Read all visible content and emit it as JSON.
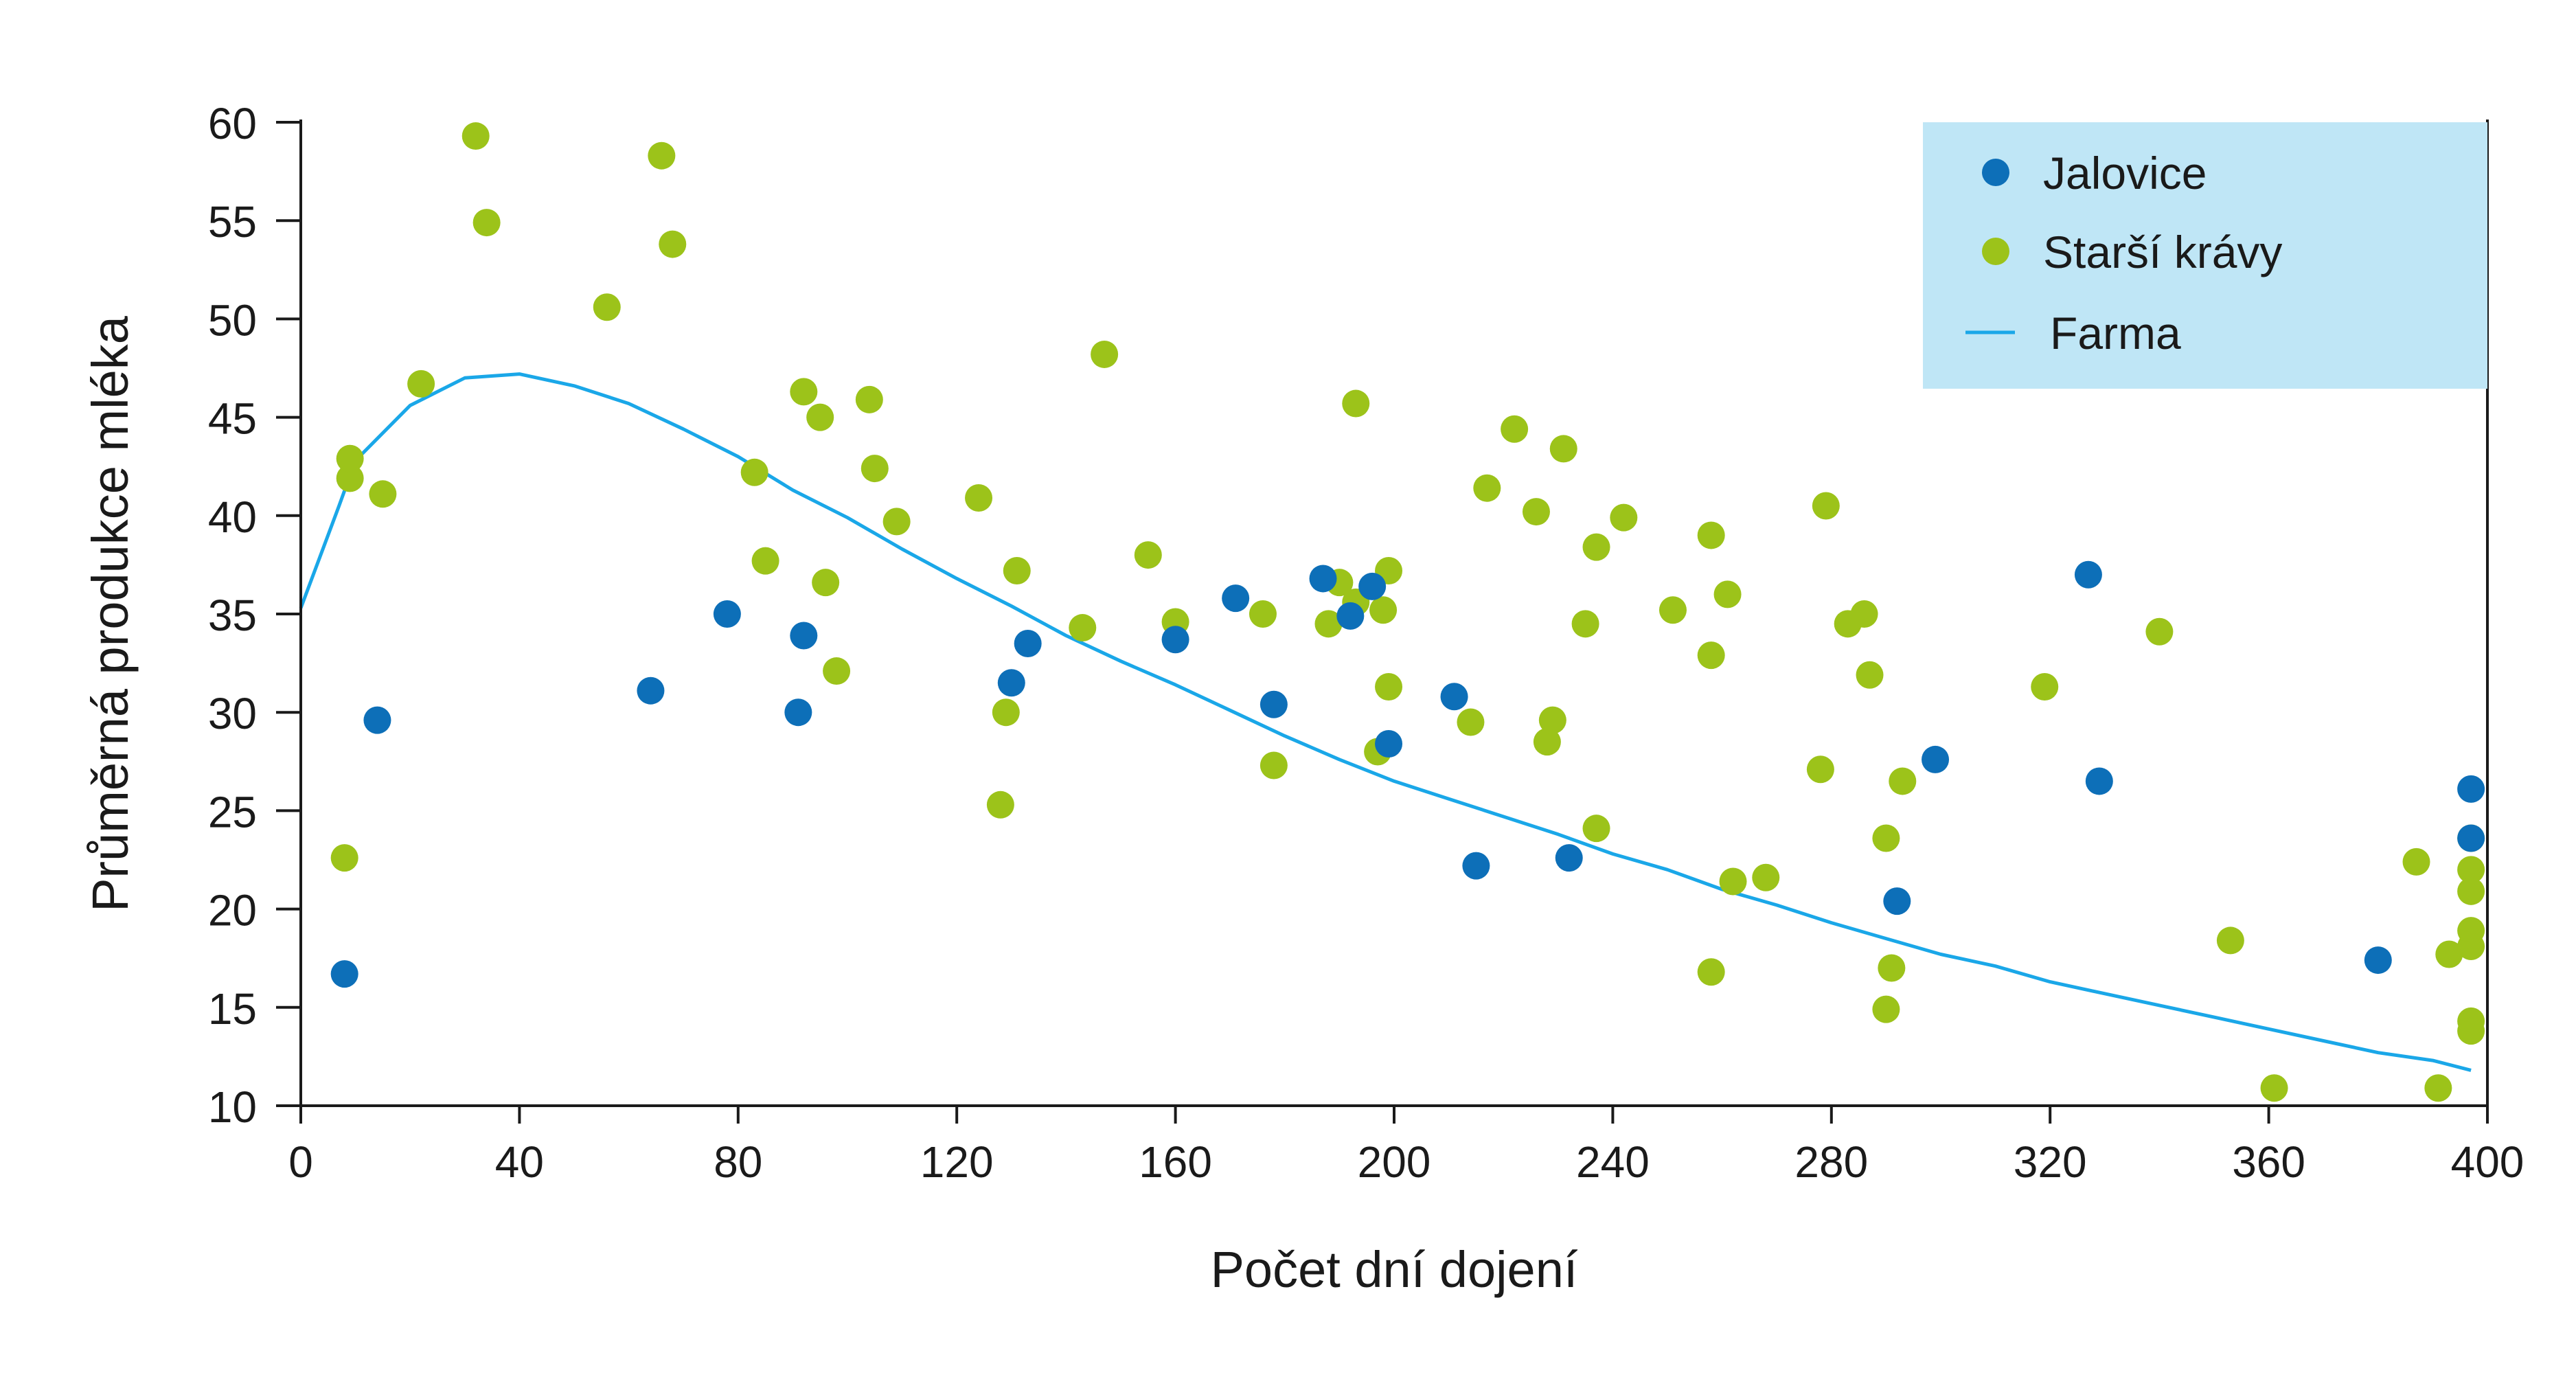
{
  "chart_data": {
    "type": "scatter",
    "xlabel": "Počet dní dojení",
    "ylabel": "Průměrná produkce mléka",
    "xlim": [
      0,
      400
    ],
    "ylim": [
      10,
      60
    ],
    "x_ticks": [
      "0",
      "40",
      "80",
      "120",
      "160",
      "200",
      "240",
      "280",
      "320",
      "360",
      "400"
    ],
    "y_ticks": [
      "10",
      "15",
      "20",
      "25",
      "30",
      "35",
      "40",
      "45",
      "50",
      "55",
      "60"
    ],
    "grid": false,
    "legend_position": "top-right",
    "colors": {
      "heifers": "#0d6fb8",
      "older_cows": "#9cc31a",
      "farm": "#1aa7e8",
      "legend_bg": "#bfe6f6",
      "axis": "#1a1a1a"
    },
    "legend": {
      "heifers": "Jalovice",
      "older_cows": "Starší krávy",
      "farm": "Farma"
    },
    "series": [
      {
        "name": "Jalovice",
        "kind": "scatter",
        "points": [
          [
            8,
            16.7
          ],
          [
            14,
            29.6
          ],
          [
            64,
            31.1
          ],
          [
            78,
            35.0
          ],
          [
            91,
            30.0
          ],
          [
            92,
            33.9
          ],
          [
            130,
            31.5
          ],
          [
            133,
            33.5
          ],
          [
            160,
            33.7
          ],
          [
            171,
            35.8
          ],
          [
            178,
            30.4
          ],
          [
            187,
            36.8
          ],
          [
            192,
            34.9
          ],
          [
            196,
            36.4
          ],
          [
            199,
            28.4
          ],
          [
            211,
            30.8
          ],
          [
            215,
            22.2
          ],
          [
            232,
            22.6
          ],
          [
            292,
            20.4
          ],
          [
            299,
            27.6
          ],
          [
            327,
            37.0
          ],
          [
            329,
            26.5
          ],
          [
            380,
            17.4
          ],
          [
            397,
            26.1
          ],
          [
            397,
            23.6
          ]
        ]
      },
      {
        "name": "Starší krávy",
        "kind": "scatter",
        "points": [
          [
            8,
            22.6
          ],
          [
            9,
            41.9
          ],
          [
            9,
            42.9
          ],
          [
            15,
            41.1
          ],
          [
            22,
            46.7
          ],
          [
            32,
            59.3
          ],
          [
            34,
            54.9
          ],
          [
            56,
            50.6
          ],
          [
            66,
            58.3
          ],
          [
            68,
            53.8
          ],
          [
            83,
            42.2
          ],
          [
            85,
            37.7
          ],
          [
            92,
            46.3
          ],
          [
            95,
            45.0
          ],
          [
            96,
            36.6
          ],
          [
            98,
            32.1
          ],
          [
            104,
            45.9
          ],
          [
            105,
            42.4
          ],
          [
            109,
            39.7
          ],
          [
            124,
            40.9
          ],
          [
            128,
            25.3
          ],
          [
            129,
            30.0
          ],
          [
            131,
            37.2
          ],
          [
            143,
            34.3
          ],
          [
            147,
            48.2
          ],
          [
            155,
            38.0
          ],
          [
            160,
            34.6
          ],
          [
            176,
            35.0
          ],
          [
            178,
            27.3
          ],
          [
            188,
            34.5
          ],
          [
            190,
            36.6
          ],
          [
            193,
            35.6
          ],
          [
            193,
            45.7
          ],
          [
            197,
            28.0
          ],
          [
            198,
            35.2
          ],
          [
            199,
            37.2
          ],
          [
            199,
            31.3
          ],
          [
            214,
            29.5
          ],
          [
            217,
            41.4
          ],
          [
            222,
            44.4
          ],
          [
            226,
            40.2
          ],
          [
            228,
            28.5
          ],
          [
            229,
            29.6
          ],
          [
            231,
            43.4
          ],
          [
            235,
            34.5
          ],
          [
            237,
            38.4
          ],
          [
            237,
            24.1
          ],
          [
            242,
            39.9
          ],
          [
            251,
            35.2
          ],
          [
            258,
            16.8
          ],
          [
            258,
            32.9
          ],
          [
            258,
            39.0
          ],
          [
            261,
            36.0
          ],
          [
            262,
            21.4
          ],
          [
            268,
            21.6
          ],
          [
            278,
            27.1
          ],
          [
            279,
            40.5
          ],
          [
            283,
            34.5
          ],
          [
            286,
            35.0
          ],
          [
            287,
            31.9
          ],
          [
            290,
            23.6
          ],
          [
            291,
            17.0
          ],
          [
            290,
            14.9
          ],
          [
            293,
            26.5
          ],
          [
            319,
            31.3
          ],
          [
            340,
            34.1
          ],
          [
            353,
            18.4
          ],
          [
            361,
            10.9
          ],
          [
            387,
            22.4
          ],
          [
            391,
            10.9
          ],
          [
            393,
            17.7
          ],
          [
            397,
            23.6
          ],
          [
            397,
            22.0
          ],
          [
            397,
            20.9
          ],
          [
            397,
            18.9
          ],
          [
            397,
            18.1
          ],
          [
            397,
            14.3
          ],
          [
            397,
            13.8
          ]
        ]
      },
      {
        "name": "Farma",
        "kind": "line",
        "points": [
          [
            0,
            35.3
          ],
          [
            7,
            40.5
          ],
          [
            10,
            42.8
          ],
          [
            20,
            45.6
          ],
          [
            30,
            47.0
          ],
          [
            40,
            47.2
          ],
          [
            50,
            46.6
          ],
          [
            60,
            45.7
          ],
          [
            70,
            44.4
          ],
          [
            80,
            43.0
          ],
          [
            90,
            41.3
          ],
          [
            100,
            39.9
          ],
          [
            110,
            38.3
          ],
          [
            120,
            36.8
          ],
          [
            130,
            35.4
          ],
          [
            140,
            33.9
          ],
          [
            150,
            32.6
          ],
          [
            160,
            31.4
          ],
          [
            170,
            30.1
          ],
          [
            180,
            28.8
          ],
          [
            190,
            27.6
          ],
          [
            200,
            26.5
          ],
          [
            210,
            25.6
          ],
          [
            220,
            24.7
          ],
          [
            230,
            23.8
          ],
          [
            240,
            22.8
          ],
          [
            250,
            22.0
          ],
          [
            260,
            21.0
          ],
          [
            270,
            20.2
          ],
          [
            280,
            19.3
          ],
          [
            290,
            18.5
          ],
          [
            300,
            17.7
          ],
          [
            310,
            17.1
          ],
          [
            320,
            16.3
          ],
          [
            330,
            15.7
          ],
          [
            340,
            15.1
          ],
          [
            350,
            14.5
          ],
          [
            360,
            13.9
          ],
          [
            370,
            13.3
          ],
          [
            380,
            12.7
          ],
          [
            390,
            12.3
          ],
          [
            397,
            11.8
          ]
        ]
      }
    ]
  }
}
